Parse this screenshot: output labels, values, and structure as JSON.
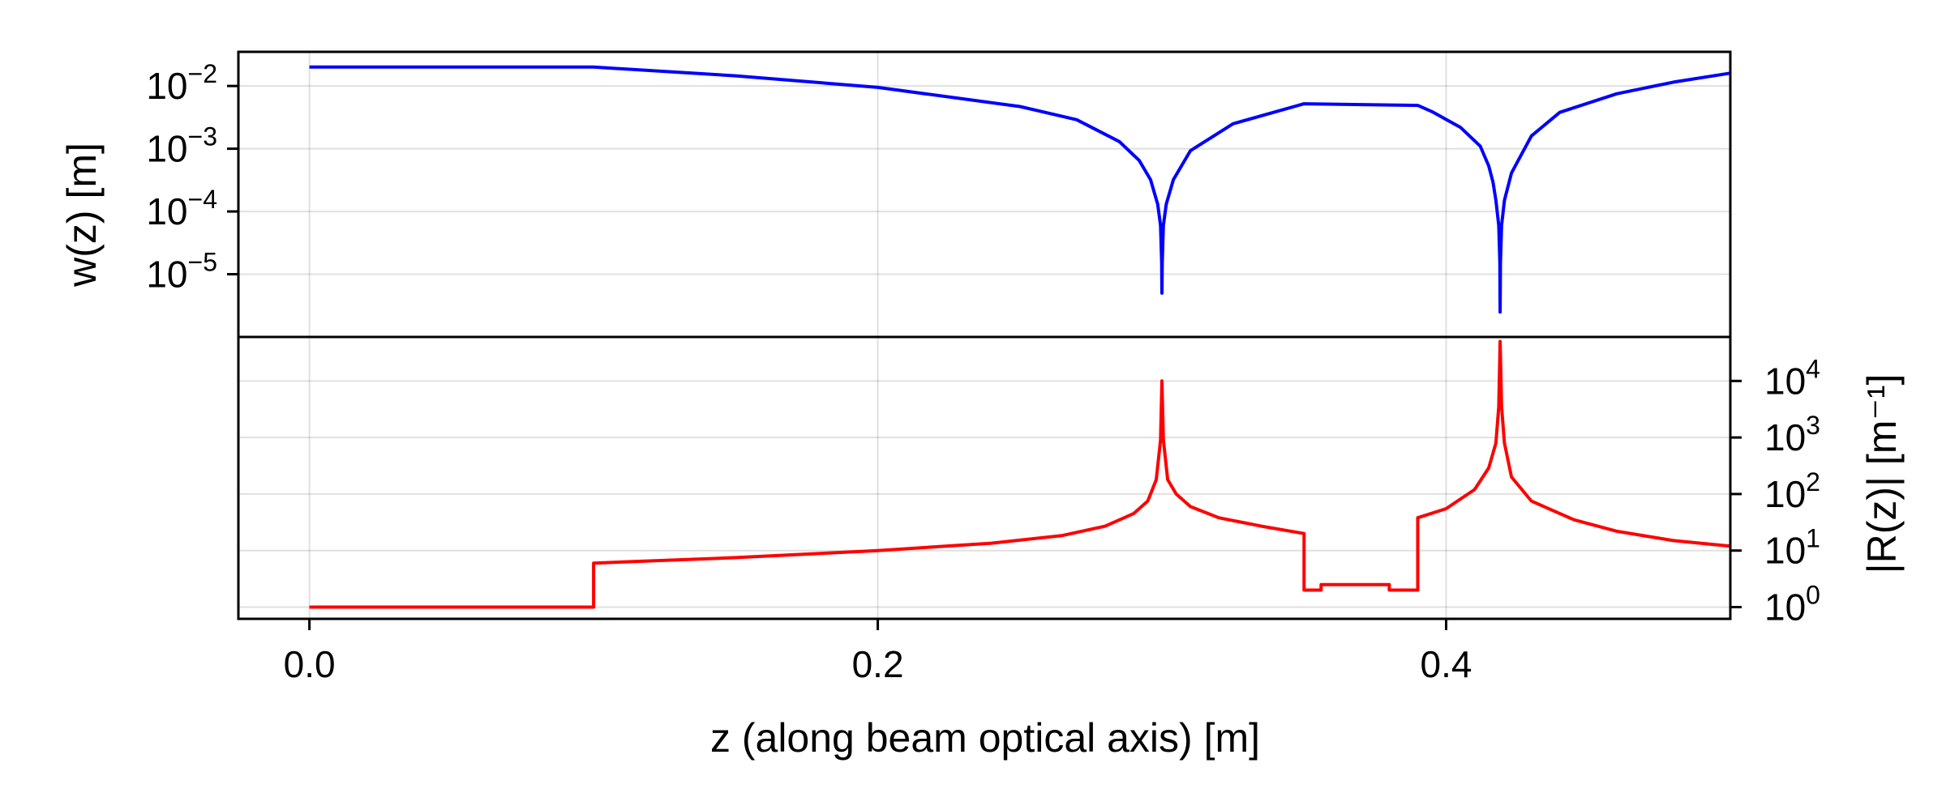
{
  "chart_data": [
    {
      "type": "line",
      "panel": "top",
      "ylabel": "w(z) [m]",
      "yscale": "log",
      "ylim": [
        1e-06,
        0.035
      ],
      "xlim": [
        -0.025,
        0.5
      ],
      "x_ticks": [
        0.0,
        0.2,
        0.4
      ],
      "y_ticks": [
        {
          "value": 0.01,
          "base": "10",
          "exp": "−2"
        },
        {
          "value": 0.001,
          "base": "10",
          "exp": "−3"
        },
        {
          "value": 0.0001,
          "base": "10",
          "exp": "−4"
        },
        {
          "value": 1e-05,
          "base": "10",
          "exp": "−5"
        }
      ],
      "series": [
        {
          "name": "w(z)",
          "color": "#0000ff",
          "x": [
            0.0,
            0.1,
            0.15,
            0.2,
            0.25,
            0.27,
            0.285,
            0.292,
            0.296,
            0.2985,
            0.2995,
            0.2999,
            0.3,
            0.3,
            0.3001,
            0.3005,
            0.3015,
            0.304,
            0.31,
            0.325,
            0.35,
            0.39,
            0.395,
            0.405,
            0.412,
            0.415,
            0.4165,
            0.4175,
            0.4185,
            0.4189,
            0.419,
            0.419,
            0.4191,
            0.4195,
            0.4205,
            0.423,
            0.43,
            0.44,
            0.46,
            0.48,
            0.5
          ],
          "values": [
            0.02,
            0.02,
            0.0145,
            0.0095,
            0.0047,
            0.0029,
            0.0013,
            0.00065,
            0.00032,
            0.00013,
            6e-05,
            1.5e-05,
            5e-06,
            5e-06,
            1.5e-05,
            6e-05,
            0.00013,
            0.00032,
            0.00093,
            0.0025,
            0.0052,
            0.0049,
            0.0039,
            0.0022,
            0.0011,
            0.00053,
            0.00029,
            0.00015,
            6e-05,
            1.5e-05,
            2.5e-06,
            2.5e-06,
            1.5e-05,
            6e-05,
            0.00015,
            0.00041,
            0.0016,
            0.0038,
            0.0075,
            0.0115,
            0.016
          ]
        }
      ]
    },
    {
      "type": "line",
      "panel": "bottom",
      "xlabel": "z (along beam optical axis) [m]",
      "ylabel": "|R(z)| [m⁻¹]",
      "yscale": "log",
      "ylim": [
        0.62,
        60000
      ],
      "xlim": [
        -0.025,
        0.5
      ],
      "x_ticks": [
        0.0,
        0.2,
        0.4
      ],
      "x_tick_labels": [
        "0.0",
        "0.2",
        "0.4"
      ],
      "y_ticks": [
        {
          "value": 10000,
          "base": "10",
          "exp": "4"
        },
        {
          "value": 1000,
          "base": "10",
          "exp": "3"
        },
        {
          "value": 100,
          "base": "10",
          "exp": "2"
        },
        {
          "value": 10,
          "base": "10",
          "exp": "1"
        },
        {
          "value": 1,
          "base": "10",
          "exp": "0"
        }
      ],
      "series": [
        {
          "name": "|R(z)|",
          "color": "#ff0000",
          "x": [
            0.0,
            0.1,
            0.1,
            0.15,
            0.2,
            0.24,
            0.265,
            0.28,
            0.29,
            0.295,
            0.298,
            0.2995,
            0.3,
            0.3005,
            0.302,
            0.305,
            0.31,
            0.32,
            0.335,
            0.35,
            0.35,
            0.356,
            0.356,
            0.38,
            0.38,
            0.39,
            0.39,
            0.4,
            0.41,
            0.415,
            0.4175,
            0.4185,
            0.419,
            0.4195,
            0.4205,
            0.423,
            0.43,
            0.445,
            0.46,
            0.48,
            0.5
          ],
          "values": [
            1,
            1,
            6,
            7.5,
            10,
            13.5,
            18.5,
            27,
            45,
            75,
            180,
            900,
            10000,
            900,
            180,
            100,
            60,
            38,
            27,
            20,
            2,
            2,
            2.5,
            2.5,
            2,
            2,
            38,
            55,
            120,
            290,
            800,
            3500,
            50000,
            3500,
            800,
            200,
            75,
            35,
            22,
            15,
            12
          ]
        }
      ]
    }
  ]
}
